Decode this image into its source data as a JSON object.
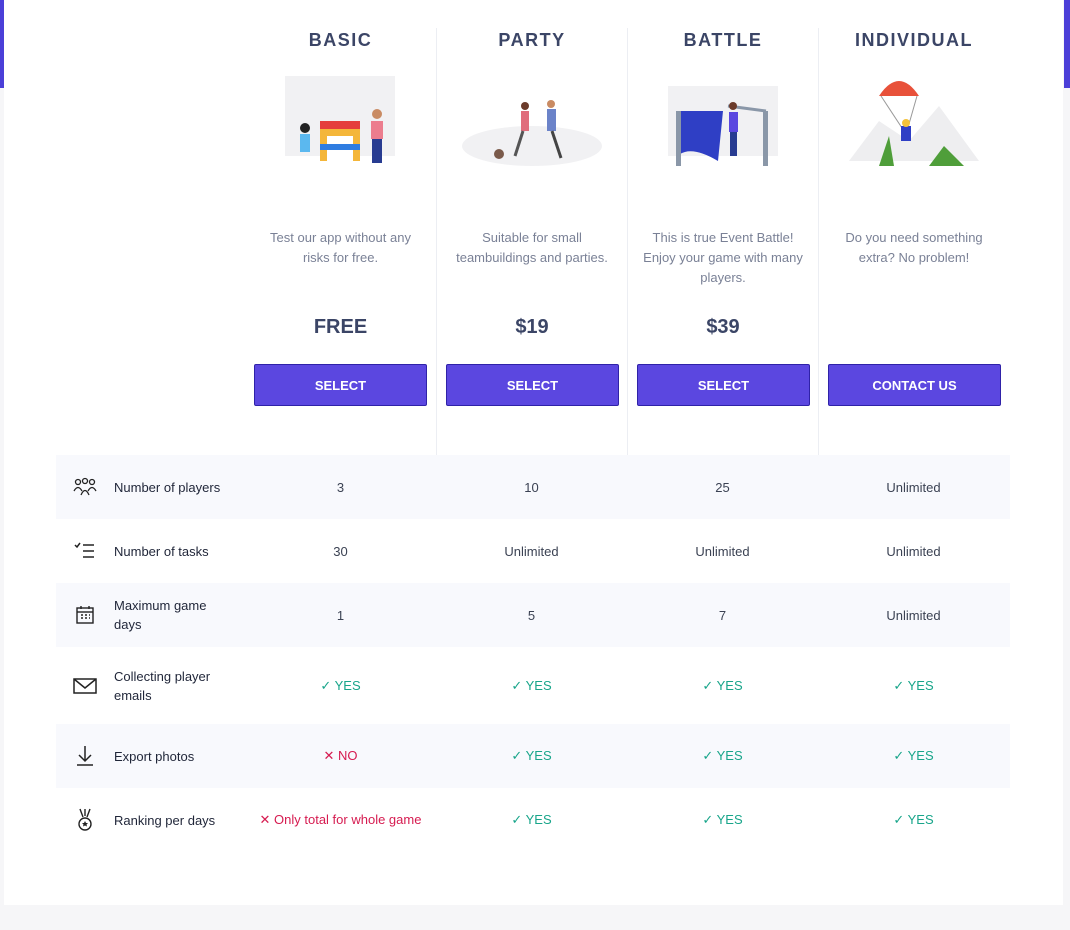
{
  "colors": {
    "accent": "#5b47e0",
    "yes": "#18a58a",
    "no": "#d61b50"
  },
  "plans": [
    {
      "name": "BASIC",
      "description": "Test our app without any risks for free.",
      "price": "FREE",
      "button": "SELECT"
    },
    {
      "name": "PARTY",
      "description": "Suitable for small teambuildings and parties.",
      "price": "$19",
      "button": "SELECT"
    },
    {
      "name": "BATTLE",
      "description": "This is true Event Battle! Enjoy your game with many players.",
      "price": "$39",
      "button": "SELECT"
    },
    {
      "name": "INDIVIDUAL",
      "description": "Do you need something extra? No problem!",
      "price": "",
      "button": "CONTACT US"
    }
  ],
  "features": [
    {
      "label": "Number of players",
      "icon": "users-icon",
      "values": [
        "3",
        "10",
        "25",
        "Unlimited"
      ]
    },
    {
      "label": "Number of tasks",
      "icon": "task-list-icon",
      "values": [
        "30",
        "Unlimited",
        "Unlimited",
        "Unlimited"
      ]
    },
    {
      "label": "Maximum game days",
      "icon": "calendar-icon",
      "values": [
        "1",
        "5",
        "7",
        "Unlimited"
      ]
    },
    {
      "label": "Collecting player emails",
      "icon": "envelope-icon",
      "values": [
        "✓ YES",
        "✓ YES",
        "✓ YES",
        "✓ YES"
      ]
    },
    {
      "label": "Export photos",
      "icon": "download-icon",
      "values": [
        "✕ NO",
        "✓ YES",
        "✓ YES",
        "✓ YES"
      ]
    },
    {
      "label": "Ranking per days",
      "icon": "medal-icon",
      "values": [
        "✕ Only total for whole game",
        "✓ YES",
        "✓ YES",
        "✓ YES"
      ]
    }
  ]
}
